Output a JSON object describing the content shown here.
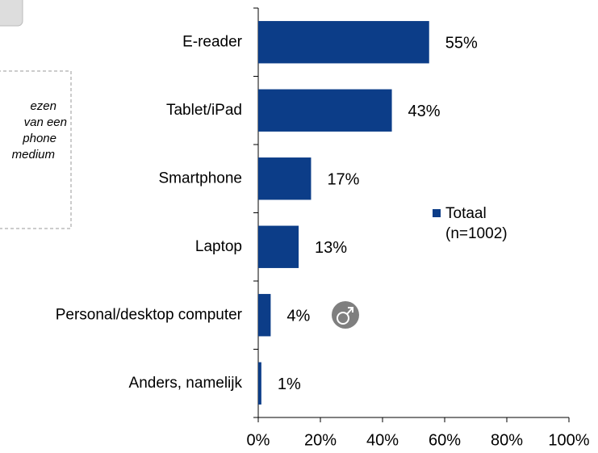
{
  "chart_data": {
    "type": "bar",
    "orientation": "horizontal",
    "categories": [
      "E-reader",
      "Tablet/iPad",
      "Smartphone",
      "Laptop",
      "Personal/desktop computer",
      "Anders, namelijk"
    ],
    "series": [
      {
        "name": "Totaal",
        "legend_note": "(n=1002)",
        "color": "#0c3d88",
        "values": [
          55,
          43,
          17,
          13,
          4,
          1
        ],
        "value_labels": [
          "55%",
          "43%",
          "17%",
          "13%",
          "4%",
          "1%"
        ]
      }
    ],
    "xlim": [
      0,
      100
    ],
    "xticks": [
      {
        "value": 0,
        "label": "0%"
      },
      {
        "value": 20,
        "label": "20%"
      },
      {
        "value": 40,
        "label": "40%"
      },
      {
        "value": 60,
        "label": "60%"
      },
      {
        "value": 80,
        "label": "80%"
      },
      {
        "value": 100,
        "label": "100%"
      }
    ],
    "legend": "right",
    "annotation_lines": [
      "ezen",
      "van een",
      "phone",
      "medium"
    ]
  }
}
